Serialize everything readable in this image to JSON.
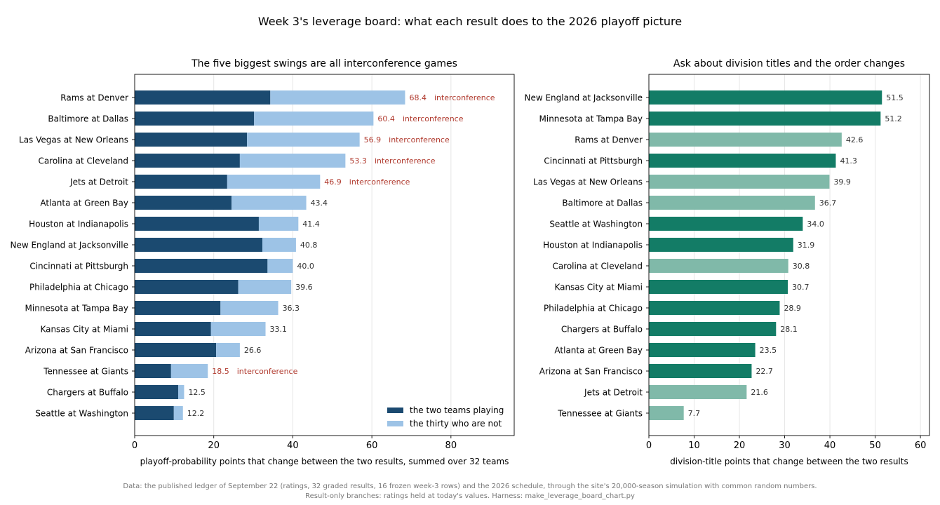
{
  "suptitle": "Week 3's leverage board: what each result does to the 2026 playoff picture",
  "footnote_line1": "Data: the published ledger of September 22 (ratings, 32 graded results, 16 frozen week-3 rows) and the 2026 schedule, through the site's 20,000-season simulation with common random numbers.",
  "footnote_line2": "Result-only branches: ratings held at today's values. Harness: make_leverage_board_chart.py",
  "colors": {
    "playing": "#1b4a70",
    "not_playing": "#9dc3e6",
    "interconference_text": "#b03a2e",
    "division_dark": "#137c66",
    "division_light": "#80b9a9",
    "value_text": "#333333"
  },
  "chart_data": [
    {
      "type": "bar",
      "orientation": "horizontal",
      "stacked": true,
      "title": "The five biggest swings are all interconference games",
      "xlabel": "playoff-probability points that change between the two results, summed over 32 teams",
      "ylabel": "",
      "xlim": [
        0,
        96
      ],
      "xticks": [
        0,
        20,
        40,
        60,
        80
      ],
      "grid": "vertical",
      "legend_position": "lower-right",
      "categories": [
        "Rams at Denver",
        "Baltimore at Dallas",
        "Las Vegas at New Orleans",
        "Carolina at Cleveland",
        "Jets at Detroit",
        "Atlanta at Green Bay",
        "Houston at Indianapolis",
        "New England at Jacksonville",
        "Cincinnati at Pittsburgh",
        "Philadelphia at Chicago",
        "Minnesota at Tampa Bay",
        "Kansas City at Miami",
        "Arizona at San Francisco",
        "Tennessee at Giants",
        "Chargers at Buffalo",
        "Seattle at Washington"
      ],
      "series": [
        {
          "name": "the two teams playing",
          "values": [
            34.3,
            30.2,
            28.4,
            26.6,
            23.4,
            24.5,
            31.4,
            32.3,
            33.6,
            26.2,
            21.7,
            19.3,
            20.6,
            9.2,
            11.0,
            9.9
          ]
        },
        {
          "name": "the thirty who are not",
          "values": [
            34.1,
            30.2,
            28.5,
            26.7,
            23.5,
            18.9,
            10.0,
            8.5,
            6.4,
            13.4,
            14.6,
            13.8,
            6.0,
            9.3,
            1.5,
            2.3
          ]
        }
      ],
      "totals": [
        "68.4",
        "60.4",
        "56.9",
        "53.3",
        "46.9",
        "43.4",
        "41.4",
        "40.8",
        "40.0",
        "39.6",
        "36.3",
        "33.1",
        "26.6",
        "18.5",
        "12.5",
        "12.2"
      ],
      "interconference": [
        true,
        true,
        true,
        true,
        true,
        false,
        false,
        false,
        false,
        false,
        false,
        false,
        false,
        true,
        false,
        false
      ],
      "annotation_label": "interconference"
    },
    {
      "type": "bar",
      "orientation": "horizontal",
      "title": "Ask about division titles and the order changes",
      "xlabel": "division-title points that change between the two results",
      "ylabel": "",
      "xlim": [
        0,
        62
      ],
      "xticks": [
        0,
        10,
        20,
        30,
        40,
        50,
        60
      ],
      "grid": "vertical",
      "categories": [
        "New England at Jacksonville",
        "Minnesota at Tampa Bay",
        "Rams at Denver",
        "Cincinnati at Pittsburgh",
        "Las Vegas at New Orleans",
        "Baltimore at Dallas",
        "Seattle at Washington",
        "Houston at Indianapolis",
        "Carolina at Cleveland",
        "Kansas City at Miami",
        "Philadelphia at Chicago",
        "Chargers at Buffalo",
        "Atlanta at Green Bay",
        "Arizona at San Francisco",
        "Jets at Detroit",
        "Tennessee at Giants"
      ],
      "values": [
        51.5,
        51.2,
        42.6,
        41.3,
        39.9,
        36.7,
        34.0,
        31.9,
        30.8,
        30.7,
        28.9,
        28.1,
        23.5,
        22.7,
        21.6,
        7.7
      ],
      "value_labels": [
        "51.5",
        "51.2",
        "42.6",
        "41.3",
        "39.9",
        "36.7",
        "34.0",
        "31.9",
        "30.8",
        "30.7",
        "28.9",
        "28.1",
        "23.5",
        "22.7",
        "21.6",
        "7.7"
      ],
      "interconference": [
        false,
        false,
        true,
        false,
        true,
        true,
        false,
        false,
        true,
        false,
        false,
        false,
        false,
        false,
        true,
        true
      ]
    }
  ]
}
